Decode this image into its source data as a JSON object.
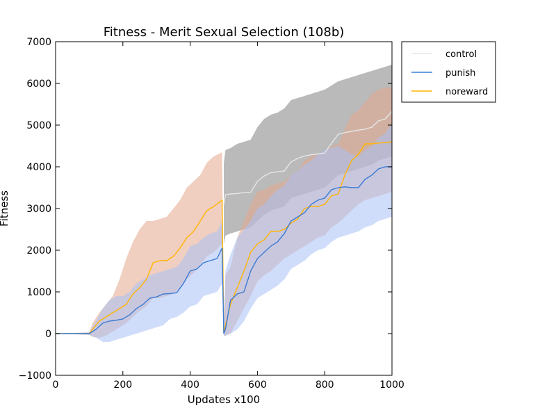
{
  "chart_data": {
    "type": "line",
    "title": "Fitness - Merit Sexual Selection (108b)",
    "xlabel": "Updates x100",
    "ylabel": "Fitness",
    "xlim": [
      0,
      1000
    ],
    "ylim": [
      -1000,
      7000
    ],
    "xticks": [
      0,
      200,
      400,
      600,
      800,
      1000
    ],
    "yticks": [
      -1000,
      0,
      1000,
      2000,
      3000,
      4000,
      5000,
      6000,
      7000
    ],
    "xtick_labels": [
      "0",
      "200",
      "400",
      "600",
      "800",
      "1000"
    ],
    "ytick_labels": [
      "−1000",
      "0",
      "1000",
      "2000",
      "3000",
      "4000",
      "5000",
      "6000",
      "7000"
    ],
    "grid": false,
    "legend_position": "outside-top-right",
    "series": [
      {
        "name": "control",
        "color": "#e6e6e6",
        "band_color": "#b3b3b3",
        "x": [
          500,
          505,
          520,
          540,
          560,
          580,
          600,
          620,
          640,
          660,
          680,
          700,
          720,
          740,
          760,
          780,
          800,
          820,
          840,
          860,
          880,
          900,
          920,
          940,
          960,
          980,
          1000
        ],
        "y": [
          3100,
          3330,
          3350,
          3360,
          3380,
          3390,
          3650,
          3780,
          3860,
          3880,
          3900,
          4120,
          4200,
          4260,
          4290,
          4310,
          4330,
          4560,
          4780,
          4820,
          4850,
          4880,
          4900,
          4950,
          5100,
          5150,
          5330
        ],
        "lower": [
          2150,
          2350,
          2400,
          2450,
          2500,
          2550,
          2700,
          2850,
          2950,
          3000,
          3050,
          3250,
          3300,
          3350,
          3400,
          3450,
          3500,
          3650,
          3800,
          3850,
          3900,
          3950,
          4000,
          4050,
          4150,
          4200,
          4250
        ],
        "upper": [
          4100,
          4400,
          4450,
          4550,
          4600,
          4650,
          4950,
          5150,
          5250,
          5300,
          5400,
          5600,
          5650,
          5700,
          5750,
          5800,
          5850,
          5950,
          6050,
          6100,
          6150,
          6200,
          6250,
          6300,
          6350,
          6400,
          6450
        ]
      },
      {
        "name": "punish",
        "color": "#3a7bd5",
        "band_color": "#a9c1f5",
        "x": [
          0,
          100,
          120,
          140,
          160,
          180,
          200,
          220,
          240,
          260,
          280,
          300,
          320,
          340,
          360,
          380,
          400,
          420,
          440,
          460,
          480,
          495,
          500,
          505,
          520,
          540,
          560,
          580,
          600,
          620,
          640,
          660,
          680,
          700,
          720,
          740,
          760,
          780,
          800,
          820,
          840,
          860,
          880,
          900,
          920,
          940,
          960,
          980,
          1000
        ],
        "y": [
          0,
          0,
          100,
          250,
          300,
          320,
          350,
          450,
          600,
          700,
          850,
          880,
          950,
          960,
          980,
          1200,
          1500,
          1550,
          1700,
          1750,
          1800,
          2050,
          0,
          100,
          800,
          950,
          1000,
          1500,
          1800,
          1950,
          2100,
          2200,
          2400,
          2700,
          2800,
          2900,
          3100,
          3200,
          3250,
          3450,
          3500,
          3520,
          3500,
          3500,
          3700,
          3800,
          3950,
          4000,
          4000
        ],
        "lower": [
          0,
          -30,
          -100,
          -200,
          -200,
          -150,
          -100,
          -50,
          0,
          50,
          100,
          150,
          200,
          350,
          400,
          500,
          650,
          700,
          900,
          950,
          1000,
          1200,
          -50,
          -50,
          0,
          100,
          300,
          600,
          850,
          950,
          1050,
          1150,
          1300,
          1550,
          1650,
          1750,
          1900,
          2000,
          2050,
          2200,
          2300,
          2350,
          2400,
          2450,
          2550,
          2600,
          2700,
          2750,
          2800
        ],
        "upper": [
          0,
          30,
          300,
          600,
          800,
          900,
          900,
          1000,
          1200,
          1300,
          1400,
          1450,
          1500,
          1550,
          1600,
          1800,
          2100,
          2150,
          2300,
          2400,
          2450,
          2700,
          150,
          1500,
          1900,
          2300,
          2500,
          2700,
          3000,
          3100,
          3300,
          3450,
          3550,
          3800,
          3900,
          4050,
          4150,
          4300,
          4400,
          4450,
          4500,
          4400,
          4300,
          4250,
          4400,
          4500,
          4700,
          4800,
          5050
        ]
      },
      {
        "name": "noreward",
        "color": "#ffb400",
        "band_color": "#e4a88c",
        "x": [
          0,
          100,
          110,
          130,
          150,
          170,
          190,
          210,
          230,
          250,
          270,
          290,
          310,
          330,
          350,
          370,
          390,
          410,
          430,
          450,
          470,
          495,
          500,
          505,
          520,
          540,
          560,
          580,
          600,
          620,
          640,
          660,
          680,
          700,
          720,
          740,
          760,
          780,
          800,
          820,
          840,
          860,
          880,
          900,
          920,
          940,
          960,
          980,
          1000
        ],
        "y": [
          0,
          0,
          100,
          300,
          400,
          500,
          600,
          700,
          950,
          1100,
          1300,
          1700,
          1750,
          1750,
          1850,
          2050,
          2300,
          2450,
          2700,
          2950,
          3050,
          3200,
          0,
          200,
          700,
          1100,
          1500,
          1950,
          2150,
          2250,
          2450,
          2450,
          2500,
          2650,
          2750,
          3000,
          3050,
          3050,
          3100,
          3300,
          3350,
          3800,
          4150,
          4300,
          4550,
          4550,
          4570,
          4580,
          4600
        ],
        "lower": [
          0,
          -30,
          -80,
          -100,
          -50,
          50,
          150,
          250,
          400,
          550,
          650,
          850,
          850,
          900,
          950,
          1100,
          1300,
          1450,
          1650,
          1850,
          1950,
          2150,
          -50,
          -50,
          0,
          300,
          600,
          900,
          1250,
          1400,
          1500,
          1650,
          1800,
          1900,
          2000,
          2100,
          2200,
          2300,
          2350,
          2550,
          2650,
          2800,
          2950,
          3100,
          3200,
          3250,
          3300,
          3350,
          3400
        ],
        "upper": [
          0,
          30,
          250,
          500,
          700,
          900,
          1300,
          1800,
          2200,
          2500,
          2700,
          2700,
          2750,
          2800,
          3000,
          3200,
          3500,
          3650,
          3800,
          4100,
          4250,
          4350,
          200,
          1400,
          1600,
          2300,
          2700,
          3100,
          3400,
          3450,
          3550,
          3600,
          3650,
          3800,
          3900,
          4150,
          4250,
          4300,
          4350,
          4500,
          4550,
          4900,
          5250,
          5350,
          5550,
          5750,
          5850,
          5900,
          5900
        ]
      }
    ]
  }
}
